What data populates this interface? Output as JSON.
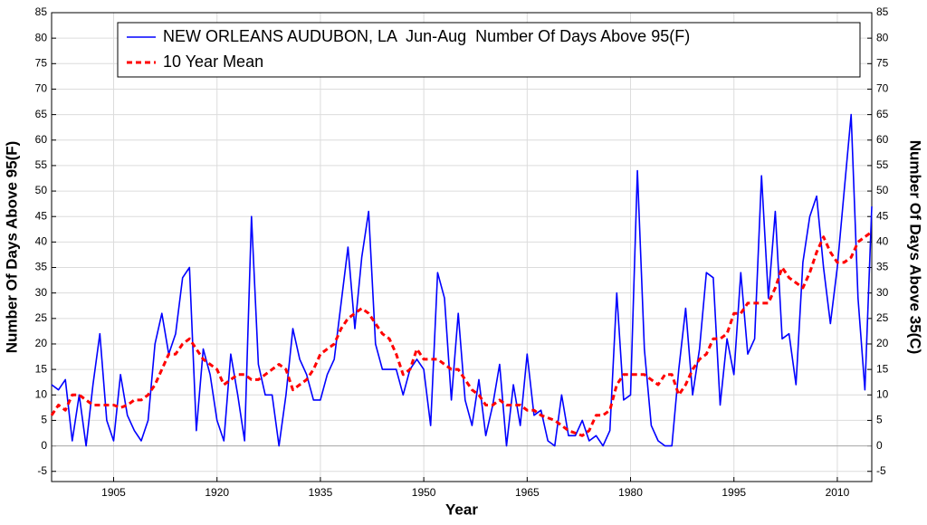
{
  "chart_data": {
    "type": "line",
    "xlabel": "Year",
    "ylabel": "Number Of Days Above 95(F)",
    "y2label": "Number Of Days Above 35(C)",
    "x": [
      1896,
      1897,
      1898,
      1899,
      1900,
      1901,
      1902,
      1903,
      1904,
      1905,
      1906,
      1907,
      1908,
      1909,
      1910,
      1911,
      1912,
      1913,
      1914,
      1915,
      1916,
      1917,
      1918,
      1919,
      1920,
      1921,
      1922,
      1923,
      1924,
      1925,
      1926,
      1927,
      1928,
      1929,
      1930,
      1931,
      1932,
      1933,
      1934,
      1935,
      1936,
      1937,
      1938,
      1939,
      1940,
      1941,
      1942,
      1943,
      1944,
      1945,
      1946,
      1947,
      1948,
      1949,
      1950,
      1951,
      1952,
      1953,
      1954,
      1955,
      1956,
      1957,
      1958,
      1959,
      1960,
      1961,
      1962,
      1963,
      1964,
      1965,
      1966,
      1967,
      1968,
      1969,
      1970,
      1971,
      1972,
      1973,
      1974,
      1975,
      1976,
      1977,
      1978,
      1979,
      1980,
      1981,
      1982,
      1983,
      1984,
      1985,
      1986,
      1987,
      1988,
      1989,
      1990,
      1991,
      1992,
      1993,
      1994,
      1995,
      1996,
      1997,
      1998,
      1999,
      2000,
      2001,
      2002,
      2003,
      2004,
      2005,
      2006,
      2007,
      2008,
      2009,
      2010,
      2011,
      2012,
      2013,
      2014,
      2015
    ],
    "series": [
      {
        "name": "NEW ORLEANS AUDUBON, LA  Jun-Aug  Number Of Days Above 95(F)",
        "color": "#0000ff",
        "style": "solid",
        "values": [
          12,
          11,
          13,
          1,
          10,
          0,
          12,
          22,
          5,
          1,
          14,
          6,
          3,
          1,
          5,
          20,
          26,
          18,
          22,
          33,
          35,
          3,
          19,
          14,
          5,
          1,
          18,
          10,
          1,
          45,
          16,
          10,
          10,
          0,
          10,
          23,
          17,
          14,
          9,
          9,
          14,
          17,
          28,
          39,
          23,
          37,
          46,
          20,
          15,
          15,
          15,
          10,
          15,
          17,
          15,
          4,
          34,
          29,
          9,
          26,
          9,
          4,
          13,
          2,
          8,
          16,
          0,
          12,
          4,
          18,
          6,
          7,
          1,
          0,
          10,
          2,
          2,
          5,
          1,
          2,
          0,
          3,
          30,
          9,
          10,
          54,
          19,
          4,
          1,
          0,
          0,
          15,
          27,
          10,
          19,
          34,
          33,
          8,
          21,
          14,
          34,
          18,
          21,
          53,
          29,
          46,
          21,
          22,
          12,
          36,
          45,
          49,
          35,
          24,
          35,
          50,
          65,
          29,
          11,
          47
        ]
      },
      {
        "name": "10 Year Mean",
        "color": "#ff0000",
        "style": "dashed",
        "values": [
          6,
          8,
          7,
          10,
          10,
          9,
          8,
          8,
          8,
          8,
          7.5,
          8,
          9,
          9,
          10,
          12,
          15,
          18,
          18,
          20,
          21,
          19,
          17,
          16,
          15,
          12,
          13,
          14,
          14,
          13,
          13,
          14,
          15,
          16,
          15,
          11,
          12,
          13,
          15,
          18,
          19,
          20,
          23,
          25,
          26,
          27,
          26,
          24,
          22,
          21,
          18,
          14,
          15,
          19,
          17,
          17,
          17,
          16,
          15,
          15,
          13,
          11,
          10,
          8,
          8,
          9,
          8,
          8,
          8,
          7,
          7,
          6,
          5.5,
          5,
          4,
          3,
          2.5,
          2,
          3,
          6,
          6,
          7,
          12,
          14,
          14,
          14,
          14,
          13,
          12,
          14,
          14,
          10,
          12,
          15,
          17,
          18,
          21,
          21,
          22,
          26,
          26,
          28,
          28,
          28,
          28,
          31,
          35,
          33,
          32,
          31,
          34,
          38,
          41,
          38,
          36,
          36,
          37,
          40,
          41,
          42
        ]
      }
    ],
    "xlim": [
      1896,
      2015
    ],
    "xticks": [
      1905,
      1920,
      1935,
      1950,
      1965,
      1980,
      1995,
      2010
    ],
    "ylim": [
      -7,
      85
    ],
    "yticks": [
      -5,
      0,
      5,
      10,
      15,
      20,
      25,
      30,
      35,
      40,
      45,
      50,
      55,
      60,
      65,
      70,
      75,
      80,
      85
    ],
    "y2lim": [
      -7,
      85
    ],
    "y2ticks": [
      -5,
      0,
      5,
      10,
      15,
      20,
      25,
      30,
      35,
      40,
      45,
      50,
      55,
      60,
      65,
      70,
      75,
      80,
      85
    ],
    "grid": true,
    "legend": "top"
  }
}
